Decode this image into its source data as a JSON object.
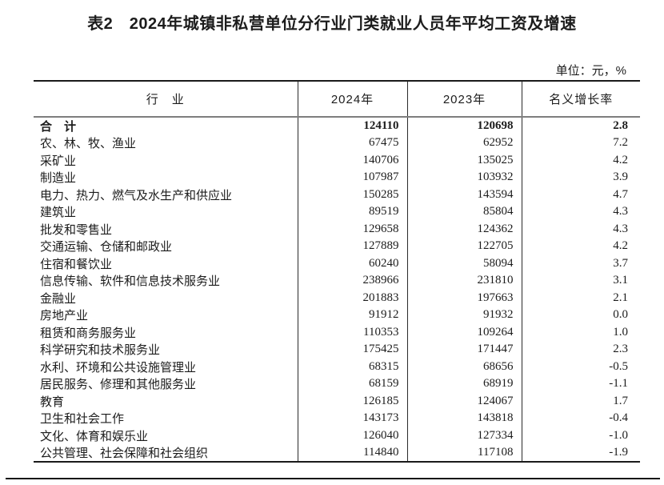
{
  "page": {
    "title": "表2　2024年城镇非私营单位分行业门类就业人员年平均工资及增速",
    "unit_note": "单位：元，%"
  },
  "table": {
    "columns": [
      "行　业",
      "2024年",
      "2023年",
      "名义增长率"
    ],
    "rows": [
      {
        "industry": "合　计",
        "y2024": "124110",
        "y2023": "120698",
        "growth": "2.8",
        "bold": true
      },
      {
        "industry": "农、林、牧、渔业",
        "y2024": "67475",
        "y2023": "62952",
        "growth": "7.2"
      },
      {
        "industry": "采矿业",
        "y2024": "140706",
        "y2023": "135025",
        "growth": "4.2"
      },
      {
        "industry": "制造业",
        "y2024": "107987",
        "y2023": "103932",
        "growth": "3.9"
      },
      {
        "industry": "电力、热力、燃气及水生产和供应业",
        "y2024": "150285",
        "y2023": "143594",
        "growth": "4.7"
      },
      {
        "industry": "建筑业",
        "y2024": "89519",
        "y2023": "85804",
        "growth": "4.3"
      },
      {
        "industry": "批发和零售业",
        "y2024": "129658",
        "y2023": "124362",
        "growth": "4.3"
      },
      {
        "industry": "交通运输、仓储和邮政业",
        "y2024": "127889",
        "y2023": "122705",
        "growth": "4.2"
      },
      {
        "industry": "住宿和餐饮业",
        "y2024": "60240",
        "y2023": "58094",
        "growth": "3.7"
      },
      {
        "industry": "信息传输、软件和信息技术服务业",
        "y2024": "238966",
        "y2023": "231810",
        "growth": "3.1"
      },
      {
        "industry": "金融业",
        "y2024": "201883",
        "y2023": "197663",
        "growth": "2.1"
      },
      {
        "industry": "房地产业",
        "y2024": "91912",
        "y2023": "91932",
        "growth": "0.0"
      },
      {
        "industry": "租赁和商务服务业",
        "y2024": "110353",
        "y2023": "109264",
        "growth": "1.0"
      },
      {
        "industry": "科学研究和技术服务业",
        "y2024": "175425",
        "y2023": "171447",
        "growth": "2.3"
      },
      {
        "industry": "水利、环境和公共设施管理业",
        "y2024": "68315",
        "y2023": "68656",
        "growth": "-0.5"
      },
      {
        "industry": "居民服务、修理和其他服务业",
        "y2024": "68159",
        "y2023": "68919",
        "growth": "-1.1"
      },
      {
        "industry": "教育",
        "y2024": "126185",
        "y2023": "124067",
        "growth": "1.7"
      },
      {
        "industry": "卫生和社会工作",
        "y2024": "143173",
        "y2023": "143818",
        "growth": "-0.4"
      },
      {
        "industry": "文化、体育和娱乐业",
        "y2024": "126040",
        "y2023": "127334",
        "growth": "-1.0"
      },
      {
        "industry": "公共管理、社会保障和社会组织",
        "y2024": "114840",
        "y2023": "117108",
        "growth": "-1.9"
      }
    ]
  },
  "colors": {
    "text": "#1c1c1c",
    "rule_dark": "#1a1a1a",
    "rule_gray": "#7e7e7e",
    "background": "#ffffff"
  }
}
